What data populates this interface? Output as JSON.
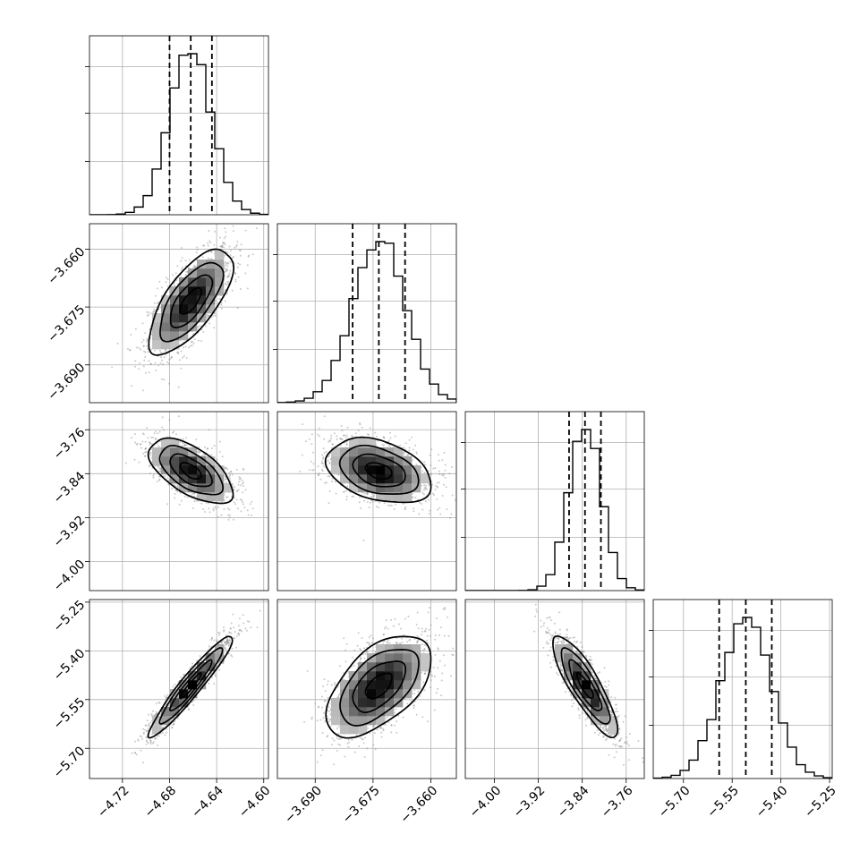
{
  "chart_data": {
    "type": "corner",
    "parameters": [
      {
        "center": -4.662,
        "sigma": 0.0178,
        "quantiles": [
          -4.68,
          -4.662,
          -4.644
        ],
        "range": [
          -4.748,
          -4.596
        ],
        "ticks": [
          -4.72,
          -4.68,
          -4.64,
          -4.6
        ],
        "tick_labels": [
          "−4.72",
          "−4.68",
          "−4.64",
          "−4.60"
        ]
      },
      {
        "center": -3.6735,
        "sigma": 0.0068,
        "quantiles": [
          -3.6803,
          -3.6735,
          -3.6667
        ],
        "range": [
          -3.6998,
          -3.6534
        ],
        "ticks": [
          -3.69,
          -3.675,
          -3.66
        ],
        "tick_labels": [
          "−3.690",
          "−3.675",
          "−3.660"
        ]
      },
      {
        "center": -3.835,
        "sigma": 0.0295,
        "quantiles": [
          -3.864,
          -3.835,
          -3.806
        ],
        "range": [
          -4.053,
          -3.727
        ],
        "ticks": [
          -4.0,
          -3.92,
          -3.84,
          -3.76
        ],
        "tick_labels": [
          "−4.00",
          "−3.92",
          "−3.84",
          "−3.76"
        ]
      },
      {
        "center": -5.508,
        "sigma": 0.078,
        "quantiles": [
          -5.59,
          -5.508,
          -5.428
        ],
        "range": [
          -5.793,
          -5.242
        ],
        "ticks": [
          -5.7,
          -5.55,
          -5.4,
          -5.25
        ],
        "tick_labels": [
          "−5.70",
          "−5.55",
          "−5.40",
          "−5.25"
        ]
      }
    ],
    "histogram_bins": 20,
    "correlations": {
      "1-0": 0.7,
      "2-0": -0.6,
      "2-1": -0.35,
      "3-0": 0.95,
      "3-1": 0.55,
      "3-2": -0.85
    },
    "contour_levels_sigma": [
      0.5,
      1.0,
      1.5,
      2.0
    ],
    "grid": true
  }
}
